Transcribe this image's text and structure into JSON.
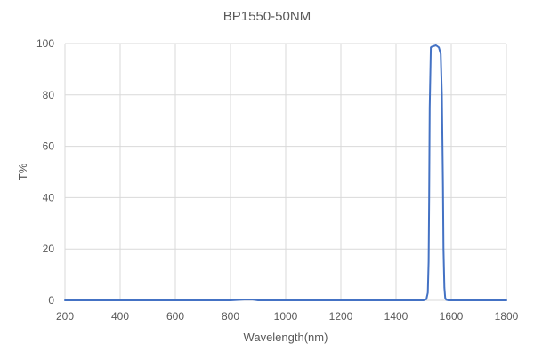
{
  "chart_data": {
    "type": "line",
    "title": "BP1550-50NM",
    "xlabel": "Wavelength(nm)",
    "ylabel": "T%",
    "xlim": [
      200,
      1800
    ],
    "ylim": [
      0,
      100
    ],
    "x_ticks": [
      200,
      400,
      600,
      800,
      1000,
      1200,
      1400,
      1600,
      1800
    ],
    "y_ticks": [
      0,
      20,
      40,
      60,
      80,
      100
    ],
    "grid": true,
    "legend": "none",
    "series": [
      {
        "name": "T%",
        "color": "#4472c4",
        "x": [
          200,
          400,
          600,
          800,
          850,
          880,
          900,
          1000,
          1200,
          1400,
          1500,
          1510,
          1515,
          1518,
          1520,
          1522,
          1526,
          1530,
          1545,
          1555,
          1562,
          1566,
          1570,
          1572,
          1575,
          1578,
          1582,
          1590,
          1600,
          1700,
          1800
        ],
        "values": [
          0,
          0,
          0,
          0,
          0.3,
          0.3,
          0,
          0,
          0,
          0,
          0,
          0.5,
          3,
          15,
          40,
          75,
          98.5,
          98.8,
          99.3,
          98.5,
          96,
          80,
          45,
          20,
          5,
          1,
          0.2,
          0,
          0,
          0,
          0
        ]
      }
    ]
  }
}
